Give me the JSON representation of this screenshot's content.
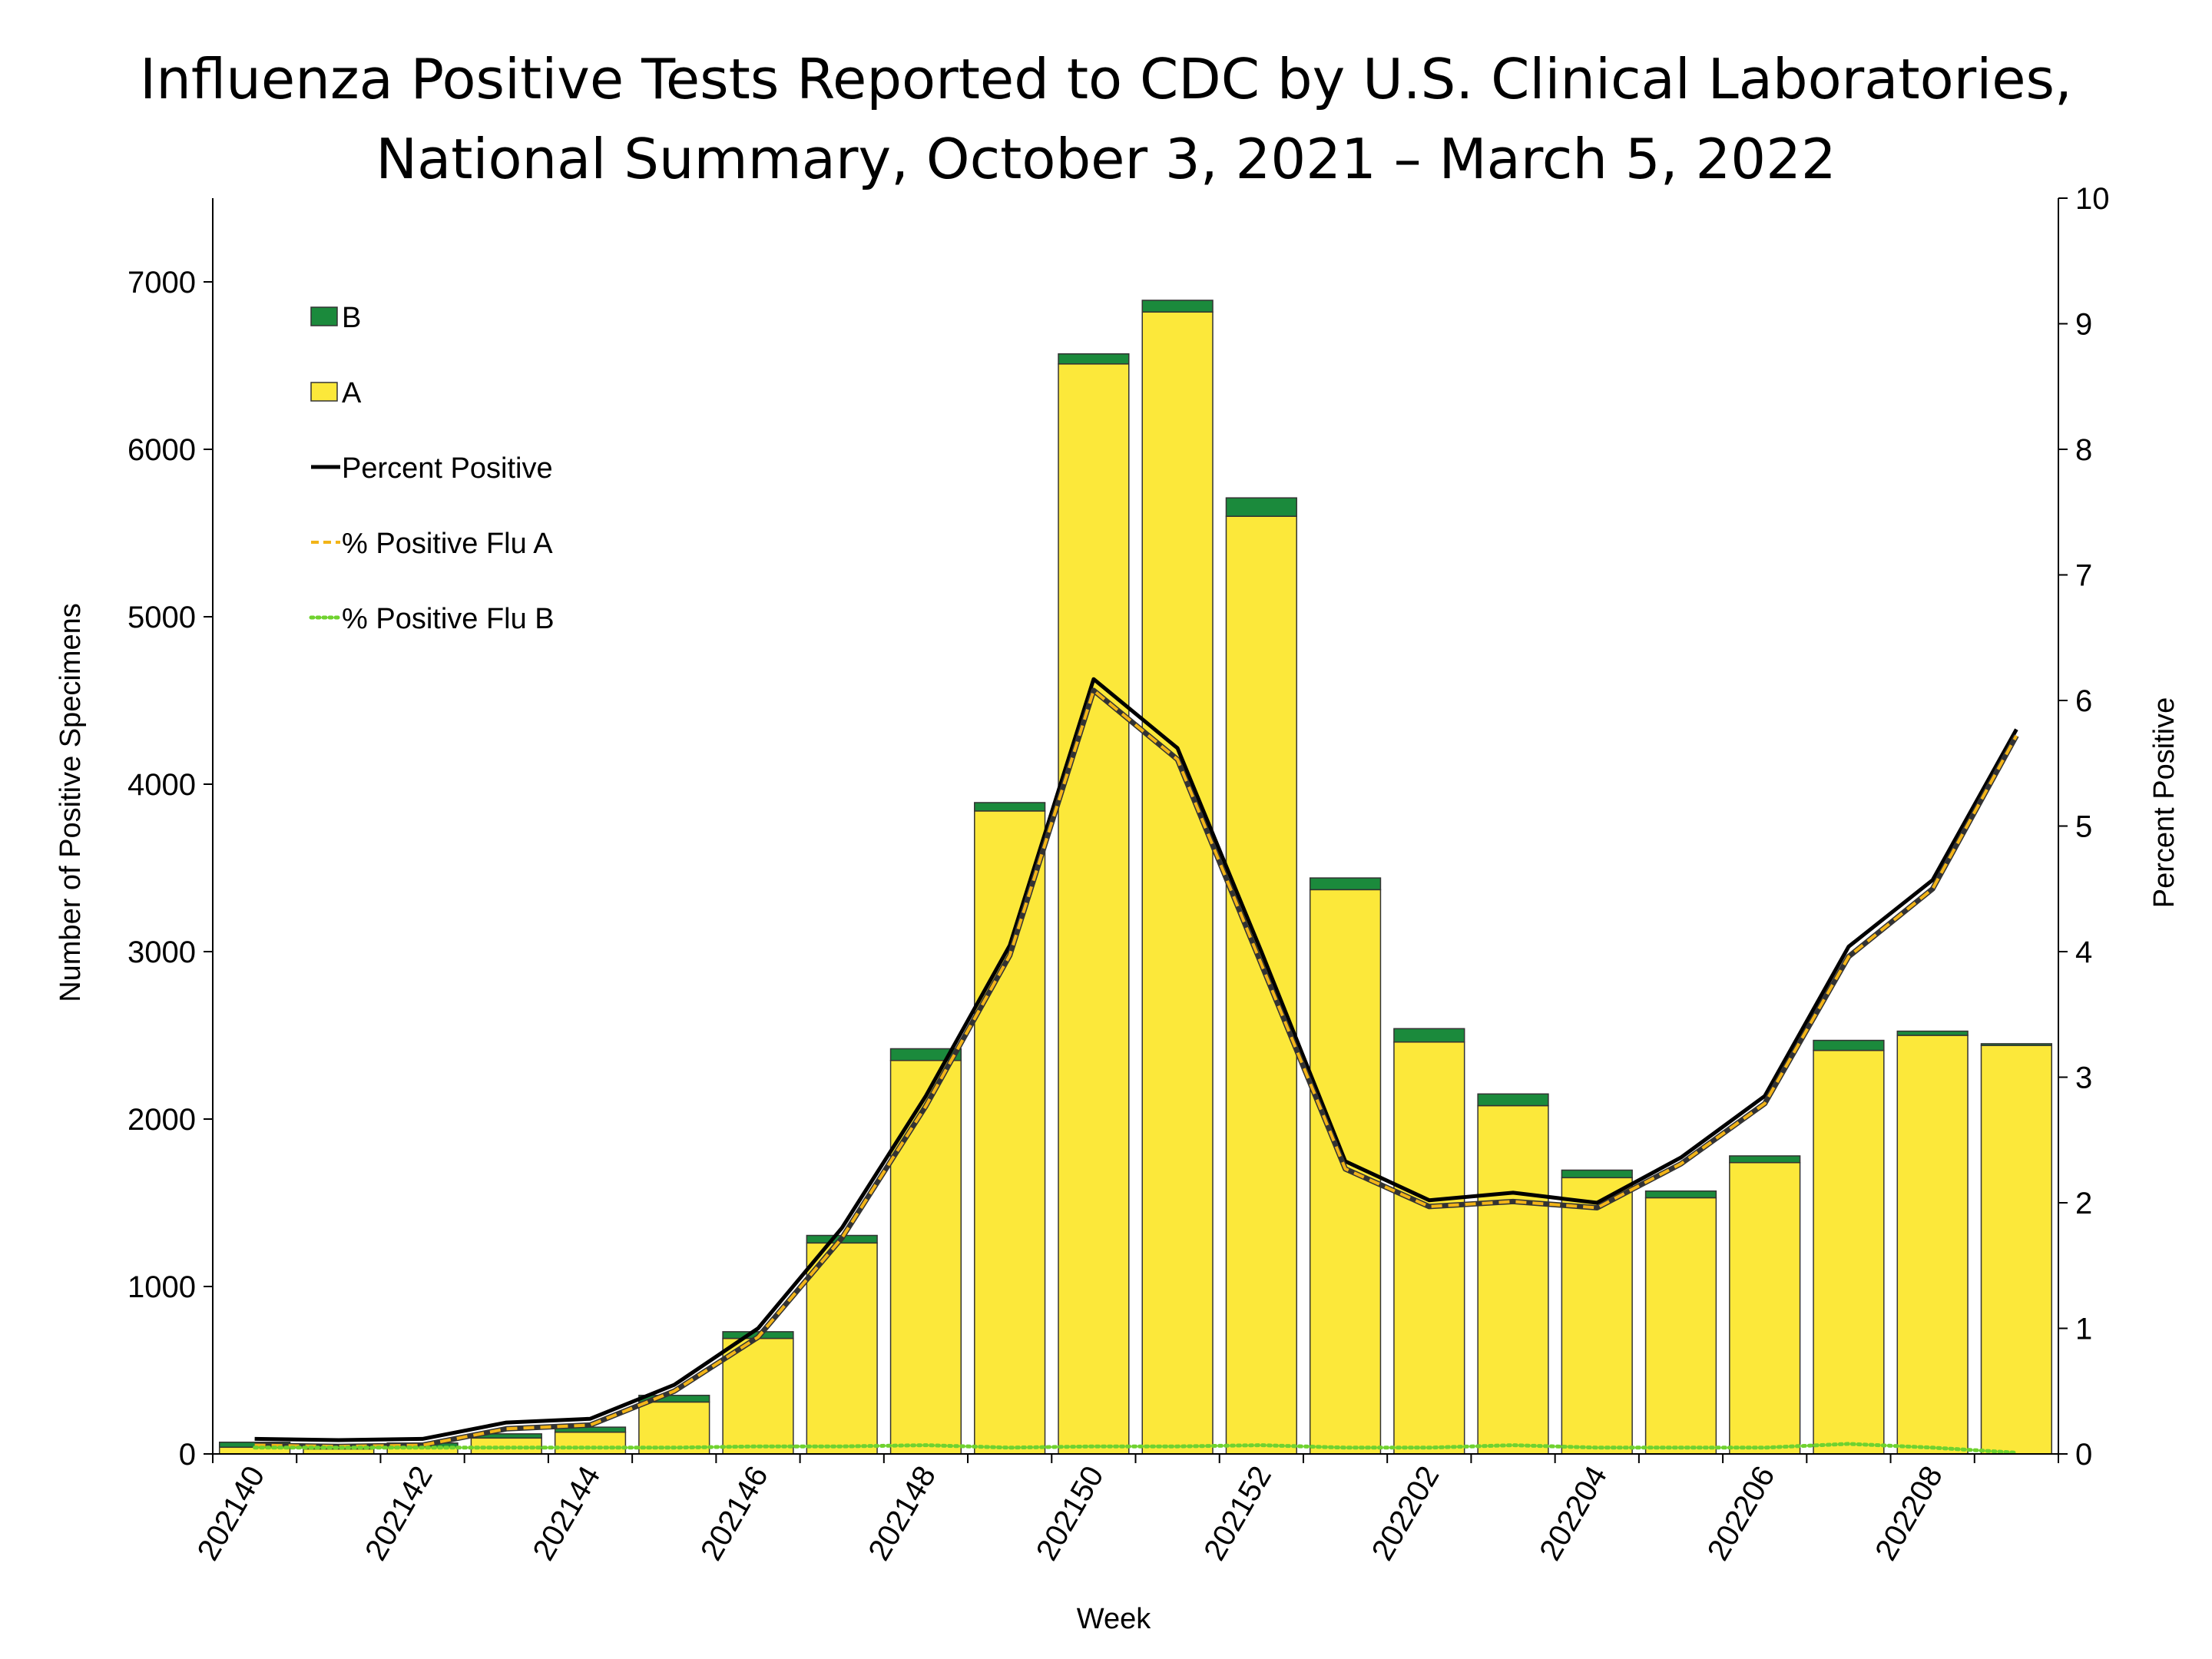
{
  "chart_data": {
    "type": "bar",
    "title_line1": "Influenza Positive Tests Reported to CDC by U.S. Clinical Laboratories,",
    "title_line2": "National Summary, October 3, 2021 – March 5, 2022",
    "xlabel": "Week",
    "ylabel_left": "Number of Positive Specimens",
    "ylabel_right": "Percent Positive",
    "ylim_left": [
      0,
      7500
    ],
    "ylim_right": [
      0,
      10
    ],
    "left_ticks": [
      "0",
      "1000",
      "2000",
      "3000",
      "4000",
      "5000",
      "6000",
      "7000"
    ],
    "right_ticks": [
      "0",
      "1",
      "2",
      "3",
      "4",
      "5",
      "6",
      "7",
      "8",
      "9",
      "10"
    ],
    "x_tick_labels": [
      "202140",
      "202142",
      "202144",
      "202146",
      "202148",
      "202150",
      "202152",
      "202202",
      "202204",
      "202206",
      "202208"
    ],
    "categories": [
      "202140",
      "202141",
      "202142",
      "202143",
      "202144",
      "202145",
      "202146",
      "202147",
      "202148",
      "202149",
      "202150",
      "202151",
      "202152",
      "202201",
      "202202",
      "202203",
      "202204",
      "202205",
      "202206",
      "202207",
      "202208",
      "202209"
    ],
    "series": [
      {
        "name": "A",
        "kind": "bar",
        "color": "#FCE83A",
        "values": [
          40,
          30,
          40,
          95,
          130,
          310,
          690,
          1260,
          2350,
          3840,
          6510,
          6820,
          5600,
          3370,
          2460,
          2080,
          1650,
          1530,
          1740,
          2410,
          2500,
          2440
        ]
      },
      {
        "name": "B",
        "kind": "bar",
        "color": "#1B8A3C",
        "values": [
          30,
          25,
          25,
          25,
          30,
          40,
          40,
          45,
          70,
          50,
          60,
          70,
          110,
          70,
          80,
          70,
          45,
          40,
          40,
          60,
          25,
          10
        ]
      },
      {
        "name": "Percent Positive",
        "kind": "line",
        "color": "#000000",
        "values": [
          0.12,
          0.11,
          0.12,
          0.25,
          0.28,
          0.55,
          1.0,
          1.8,
          2.85,
          4.05,
          6.17,
          5.62,
          4.0,
          2.33,
          2.02,
          2.08,
          2.0,
          2.36,
          2.85,
          4.04,
          4.57,
          5.77
        ]
      },
      {
        "name": "% Positive Flu A",
        "kind": "line",
        "color": "#F2B418",
        "values": [
          0.07,
          0.06,
          0.07,
          0.2,
          0.23,
          0.5,
          0.93,
          1.72,
          2.77,
          3.97,
          6.08,
          5.53,
          3.9,
          2.27,
          1.97,
          2.01,
          1.96,
          2.31,
          2.79,
          3.96,
          4.5,
          5.72
        ]
      },
      {
        "name": "% Positive Flu B",
        "kind": "line",
        "color": "#6FD22F",
        "values": [
          0.05,
          0.05,
          0.05,
          0.05,
          0.05,
          0.05,
          0.06,
          0.06,
          0.07,
          0.05,
          0.06,
          0.06,
          0.07,
          0.05,
          0.05,
          0.07,
          0.05,
          0.05,
          0.05,
          0.08,
          0.05,
          0.01
        ]
      }
    ],
    "legend": [
      {
        "label": "B",
        "type": "box",
        "color": "#1B8A3C"
      },
      {
        "label": "A",
        "type": "box",
        "color": "#FCE83A"
      },
      {
        "label": "Percent Positive",
        "type": "line",
        "color": "#000000"
      },
      {
        "label": "% Positive Flu A",
        "type": "dash",
        "color": "#F2B418"
      },
      {
        "label": "% Positive Flu B",
        "type": "dot",
        "color": "#6FD22F"
      }
    ],
    "legend_position": "top-left"
  }
}
